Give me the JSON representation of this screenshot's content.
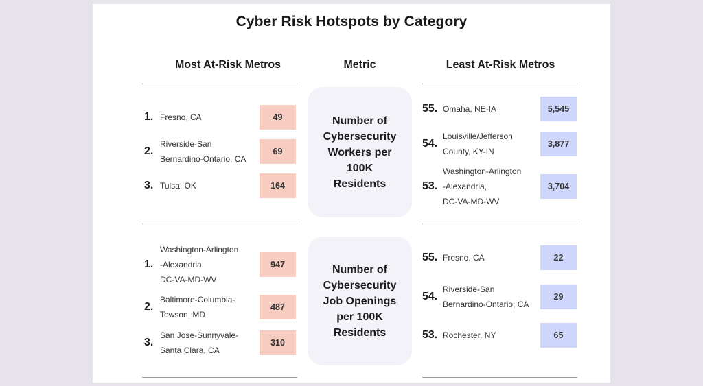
{
  "title": "Cyber Risk Hotspots by Category",
  "headers": {
    "most": "Most At-Risk Metros",
    "metric": "Metric",
    "least": "Least At-Risk Metros"
  },
  "sections": [
    {
      "metric": "Number of\nCybersecurity\nWorkers per\n100K\nResidents",
      "most": [
        {
          "rank": "1.",
          "name": "Fresno, CA",
          "value": "49"
        },
        {
          "rank": "2.",
          "name": "Riverside-San\nBernardino-Ontario, CA",
          "value": "69"
        },
        {
          "rank": "3.",
          "name": "Tulsa, OK",
          "value": "164"
        }
      ],
      "least": [
        {
          "rank": "55.",
          "name": "Omaha, NE-IA",
          "value": "5,545"
        },
        {
          "rank": "54.",
          "name": "Louisville/Jefferson\nCounty, KY-IN",
          "value": "3,877"
        },
        {
          "rank": "53.",
          "name": "Washington-Arlington\n-Alexandria,\nDC-VA-MD-WV",
          "value": "3,704"
        }
      ]
    },
    {
      "metric": "Number of\nCybersecurity\nJob Openings\nper 100K\nResidents",
      "most": [
        {
          "rank": "1.",
          "name": "Washington-Arlington\n-Alexandria,\nDC-VA-MD-WV",
          "value": "947"
        },
        {
          "rank": "2.",
          "name": "Baltimore-Columbia-\nTowson, MD",
          "value": "487"
        },
        {
          "rank": "3.",
          "name": "San Jose-Sunnyvale-\nSanta Clara, CA",
          "value": "310"
        }
      ],
      "least": [
        {
          "rank": "55.",
          "name": "Fresno, CA",
          "value": "22"
        },
        {
          "rank": "54.",
          "name": "Riverside-San\nBernardino-Ontario, CA",
          "value": "29"
        },
        {
          "rank": "53.",
          "name": "Rochester, NY",
          "value": "65"
        }
      ]
    }
  ],
  "colors": {
    "risk_fill": "#f6cdc0",
    "safe_fill": "#cfd6fb",
    "metric_bg": "#f2f2f8"
  }
}
